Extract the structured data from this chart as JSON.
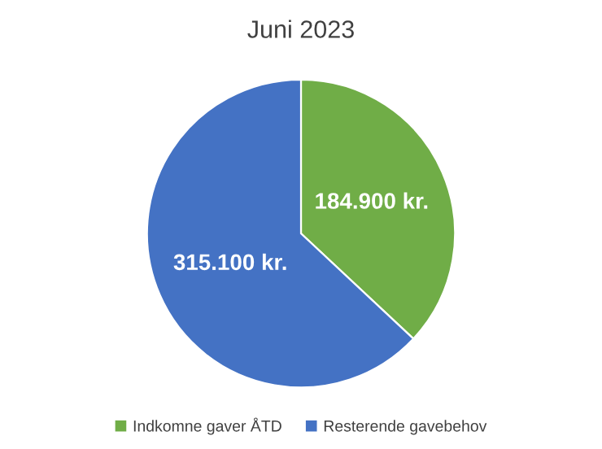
{
  "chart_data": {
    "type": "pie",
    "title": "Juni 2023",
    "categories": [
      "Indkomne gaver ÅTD",
      "Resterende gavebehov"
    ],
    "values": [
      184900,
      315100
    ],
    "colors": [
      "#70ad47",
      "#4472c4"
    ],
    "value_labels": [
      "184.900 kr.",
      "315.100 kr."
    ],
    "legend": "bottom"
  }
}
